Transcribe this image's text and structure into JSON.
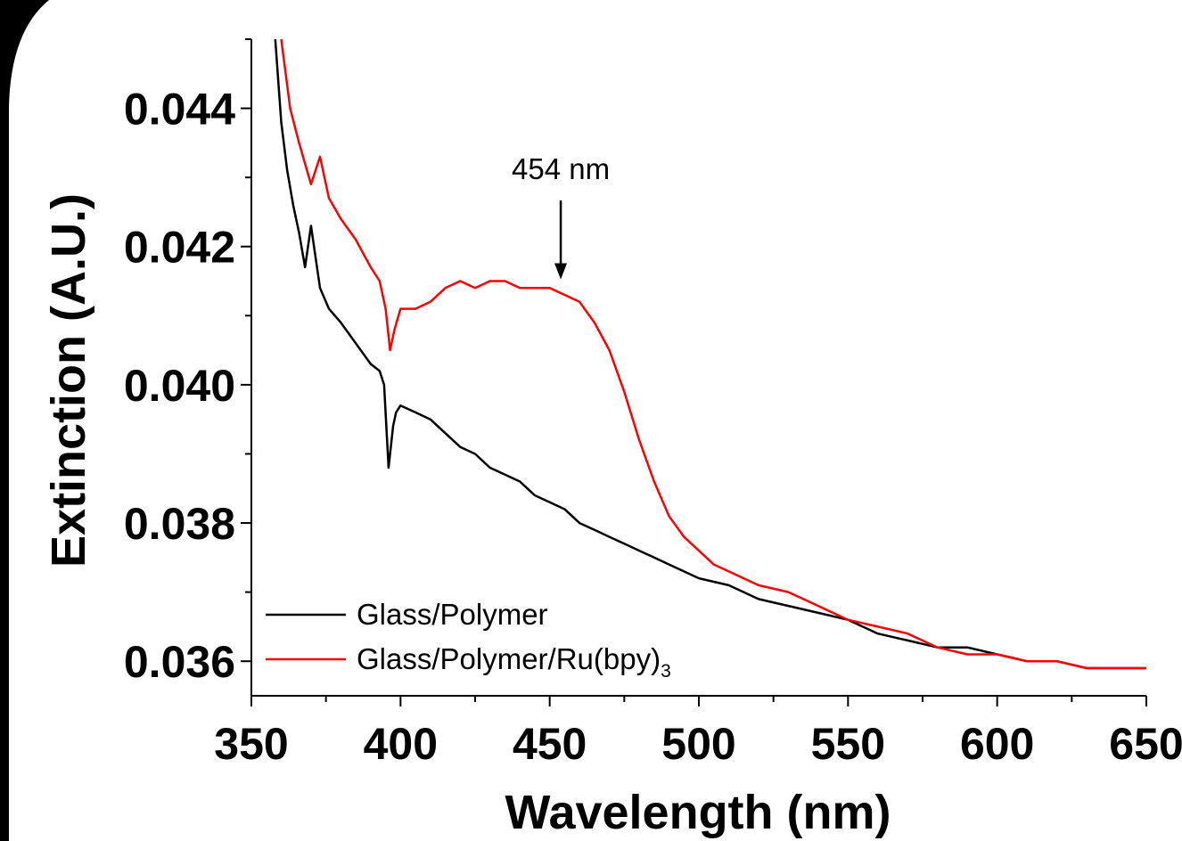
{
  "chart_data": {
    "type": "line",
    "title": "",
    "xlabel": "Wavelength (nm)",
    "ylabel": "Extinction (A.U.)",
    "xlim": [
      350,
      650
    ],
    "ylim": [
      0.0355,
      0.045
    ],
    "x_ticks": [
      350,
      400,
      450,
      500,
      550,
      600,
      650
    ],
    "x_tick_labels": [
      "350",
      "400",
      "450",
      "500",
      "550",
      "600",
      "650"
    ],
    "y_ticks": [
      0.036,
      0.038,
      0.04,
      0.042,
      0.044
    ],
    "y_tick_labels": [
      "0.036",
      "0.038",
      "0.040",
      "0.042",
      "0.044"
    ],
    "grid": false,
    "legend_position": "bottom-left",
    "series": [
      {
        "name": "Glass/Polymer",
        "name_main": "Glass/Polymer",
        "name_subscript": "",
        "color": "#000000",
        "points": [
          [
            358,
            0.045
          ],
          [
            360,
            0.0438
          ],
          [
            362,
            0.0431
          ],
          [
            364,
            0.0426
          ],
          [
            366,
            0.0422
          ],
          [
            368,
            0.0417
          ],
          [
            370,
            0.0423
          ],
          [
            373,
            0.0414
          ],
          [
            376,
            0.0411
          ],
          [
            380,
            0.0409
          ],
          [
            385,
            0.0406
          ],
          [
            390,
            0.0403
          ],
          [
            393,
            0.0402
          ],
          [
            394.5,
            0.04
          ],
          [
            396,
            0.0388
          ],
          [
            397.5,
            0.0394
          ],
          [
            398.5,
            0.0396
          ],
          [
            400,
            0.0397
          ],
          [
            405,
            0.0396
          ],
          [
            410,
            0.0395
          ],
          [
            415,
            0.0393
          ],
          [
            420,
            0.0391
          ],
          [
            425,
            0.039
          ],
          [
            430,
            0.0388
          ],
          [
            435,
            0.0387
          ],
          [
            440,
            0.0386
          ],
          [
            445,
            0.0384
          ],
          [
            450,
            0.0383
          ],
          [
            455,
            0.0382
          ],
          [
            460,
            0.038
          ],
          [
            465,
            0.0379
          ],
          [
            470,
            0.0378
          ],
          [
            475,
            0.0377
          ],
          [
            480,
            0.0376
          ],
          [
            485,
            0.0375
          ],
          [
            490,
            0.0374
          ],
          [
            495,
            0.0373
          ],
          [
            500,
            0.0372
          ],
          [
            510,
            0.0371
          ],
          [
            520,
            0.0369
          ],
          [
            530,
            0.0368
          ],
          [
            540,
            0.0367
          ],
          [
            550,
            0.0366
          ],
          [
            560,
            0.0364
          ],
          [
            570,
            0.0363
          ],
          [
            580,
            0.0362
          ],
          [
            590,
            0.0362
          ],
          [
            600,
            0.0361
          ],
          [
            610,
            0.036
          ],
          [
            620,
            0.036
          ],
          [
            630,
            0.0359
          ],
          [
            640,
            0.0359
          ],
          [
            650,
            0.0359
          ]
        ]
      },
      {
        "name": "Glass/Polymer/Ru(bpy)3",
        "name_main": "Glass/Polymer/Ru(bpy)",
        "name_subscript": "3",
        "color": "#ff0000",
        "points": [
          [
            360,
            0.045
          ],
          [
            363,
            0.044
          ],
          [
            366,
            0.0435
          ],
          [
            370,
            0.0429
          ],
          [
            373,
            0.0433
          ],
          [
            376,
            0.0427
          ],
          [
            380,
            0.0424
          ],
          [
            385,
            0.0421
          ],
          [
            390,
            0.0417
          ],
          [
            393,
            0.0415
          ],
          [
            395,
            0.0411
          ],
          [
            396.5,
            0.0405
          ],
          [
            398,
            0.0408
          ],
          [
            400,
            0.0411
          ],
          [
            405,
            0.0411
          ],
          [
            410,
            0.0412
          ],
          [
            415,
            0.0414
          ],
          [
            420,
            0.0415
          ],
          [
            425,
            0.0414
          ],
          [
            430,
            0.0415
          ],
          [
            435,
            0.0415
          ],
          [
            440,
            0.0414
          ],
          [
            445,
            0.0414
          ],
          [
            450,
            0.0414
          ],
          [
            455,
            0.0413
          ],
          [
            460,
            0.0412
          ],
          [
            465,
            0.0409
          ],
          [
            470,
            0.0405
          ],
          [
            475,
            0.0399
          ],
          [
            480,
            0.0392
          ],
          [
            485,
            0.0386
          ],
          [
            490,
            0.0381
          ],
          [
            495,
            0.0378
          ],
          [
            500,
            0.0376
          ],
          [
            505,
            0.0374
          ],
          [
            510,
            0.0373
          ],
          [
            520,
            0.0371
          ],
          [
            530,
            0.037
          ],
          [
            540,
            0.0368
          ],
          [
            550,
            0.0366
          ],
          [
            560,
            0.0365
          ],
          [
            570,
            0.0364
          ],
          [
            580,
            0.0362
          ],
          [
            590,
            0.0361
          ],
          [
            600,
            0.0361
          ],
          [
            610,
            0.036
          ],
          [
            620,
            0.036
          ],
          [
            630,
            0.0359
          ],
          [
            640,
            0.0359
          ],
          [
            650,
            0.0359
          ]
        ]
      }
    ],
    "annotations": [
      {
        "text": "454 nm",
        "x": 454,
        "y": 0.0415,
        "kind": "arrow"
      }
    ]
  }
}
